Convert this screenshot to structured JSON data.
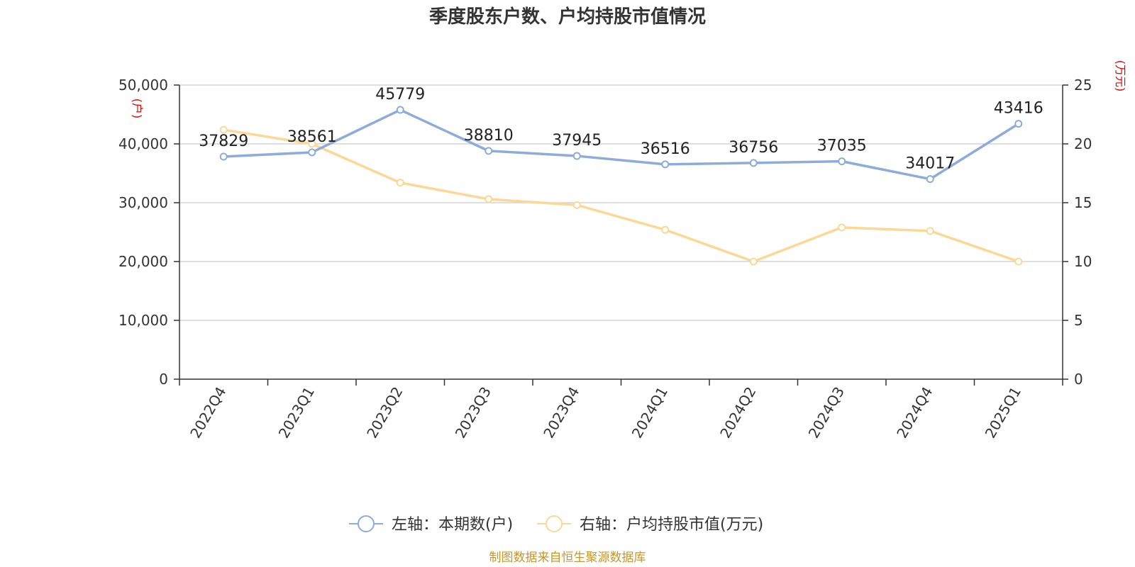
{
  "chart_data": {
    "type": "line",
    "title": "季度股东户数、户均持股市值情况",
    "categories": [
      "2022Q4",
      "2023Q1",
      "2023Q2",
      "2023Q3",
      "2023Q4",
      "2024Q1",
      "2024Q2",
      "2024Q3",
      "2024Q4",
      "2025Q1"
    ],
    "left_axis": {
      "unit": "(户)",
      "range": [
        0,
        50000
      ],
      "ticks": [
        "0",
        "10,000",
        "20,000",
        "30,000",
        "40,000",
        "50,000"
      ]
    },
    "right_axis": {
      "unit": "(万元)",
      "range": [
        0,
        25
      ],
      "ticks": [
        "0",
        "5",
        "10",
        "15",
        "20",
        "25"
      ]
    },
    "series": [
      {
        "name": "左轴：本期数(户)",
        "axis": "left",
        "color": "#8eabd9",
        "values": [
          37829,
          38561,
          45779,
          38810,
          37945,
          36516,
          36756,
          37035,
          34017,
          43416
        ],
        "labels": [
          "37829",
          "38561",
          "45779",
          "38810",
          "37945",
          "36516",
          "36756",
          "37035",
          "34017",
          "43416"
        ]
      },
      {
        "name": "右轴：户均持股市值(万元)",
        "axis": "right",
        "color": "#fcd898",
        "values": [
          21.2,
          20.0,
          16.7,
          15.3,
          14.8,
          12.7,
          10.0,
          12.9,
          12.6,
          10.0
        ]
      }
    ],
    "grid": true,
    "legend_position": "bottom-center"
  },
  "source": "制图数据来自恒生聚源数据库"
}
